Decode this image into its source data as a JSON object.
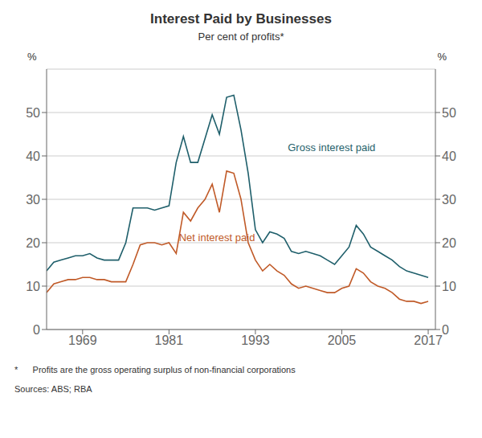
{
  "chart_data": {
    "type": "line",
    "title": "Interest Paid by Businesses",
    "subtitle": "Per cent of profits*",
    "ylabel": "%",
    "y2label": "%",
    "footnote": "*      Profits are the gross operating surplus of non-financial corporations",
    "sources": "Sources: ABS; RBA",
    "grid": true,
    "x": [
      1964,
      1965,
      1966,
      1967,
      1968,
      1969,
      1970,
      1971,
      1972,
      1973,
      1974,
      1975,
      1976,
      1977,
      1978,
      1979,
      1980,
      1981,
      1982,
      1983,
      1984,
      1985,
      1986,
      1987,
      1988,
      1989,
      1990,
      1991,
      1992,
      1993,
      1994,
      1995,
      1996,
      1997,
      1998,
      1999,
      2000,
      2001,
      2002,
      2003,
      2004,
      2005,
      2006,
      2007,
      2008,
      2009,
      2010,
      2011,
      2012,
      2013,
      2014,
      2015,
      2016,
      2017
    ],
    "xlim": [
      1964,
      2018
    ],
    "xticks": [
      1969,
      1981,
      1993,
      2005,
      2017
    ],
    "ylim": [
      0,
      60
    ],
    "yticks": [
      0,
      10,
      20,
      30,
      40,
      50
    ],
    "y2lim": [
      0,
      60
    ],
    "y2ticks": [
      0,
      10,
      20,
      30,
      40,
      50
    ],
    "series": [
      {
        "name": "Gross interest paid",
        "color": "#1F5F6B",
        "values": [
          13.5,
          15.5,
          16.0,
          16.5,
          17.0,
          17.0,
          17.5,
          16.5,
          16.0,
          16.0,
          16.0,
          20.0,
          28.0,
          28.0,
          28.0,
          27.5,
          28.0,
          28.5,
          38.5,
          44.5,
          38.5,
          38.5,
          44.0,
          49.5,
          45.0,
          53.5,
          54.0,
          46.0,
          36.0,
          23.0,
          20.0,
          22.5,
          22.0,
          21.0,
          18.0,
          17.5,
          18.0,
          17.5,
          17.0,
          16.0,
          15.0,
          17.0,
          19.0,
          24.0,
          22.0,
          19.0,
          18.0,
          17.0,
          16.0,
          14.5,
          13.5,
          13.0,
          12.5,
          12.0
        ]
      },
      {
        "name": "Net interest paid",
        "color": "#C05A28",
        "values": [
          8.5,
          10.5,
          11.0,
          11.5,
          11.5,
          12.0,
          12.0,
          11.5,
          11.5,
          11.0,
          11.0,
          11.0,
          15.0,
          19.5,
          20.0,
          20.0,
          19.5,
          20.0,
          17.5,
          27.0,
          25.0,
          28.0,
          30.0,
          33.5,
          27.0,
          36.5,
          36.0,
          30.0,
          20.0,
          16.0,
          13.5,
          15.0,
          13.5,
          12.5,
          10.5,
          9.5,
          10.0,
          9.5,
          9.0,
          8.5,
          8.5,
          9.5,
          10.0,
          14.0,
          13.0,
          11.0,
          10.0,
          9.5,
          8.5,
          7.0,
          6.5,
          6.5,
          6.0,
          6.5
        ]
      }
    ]
  }
}
